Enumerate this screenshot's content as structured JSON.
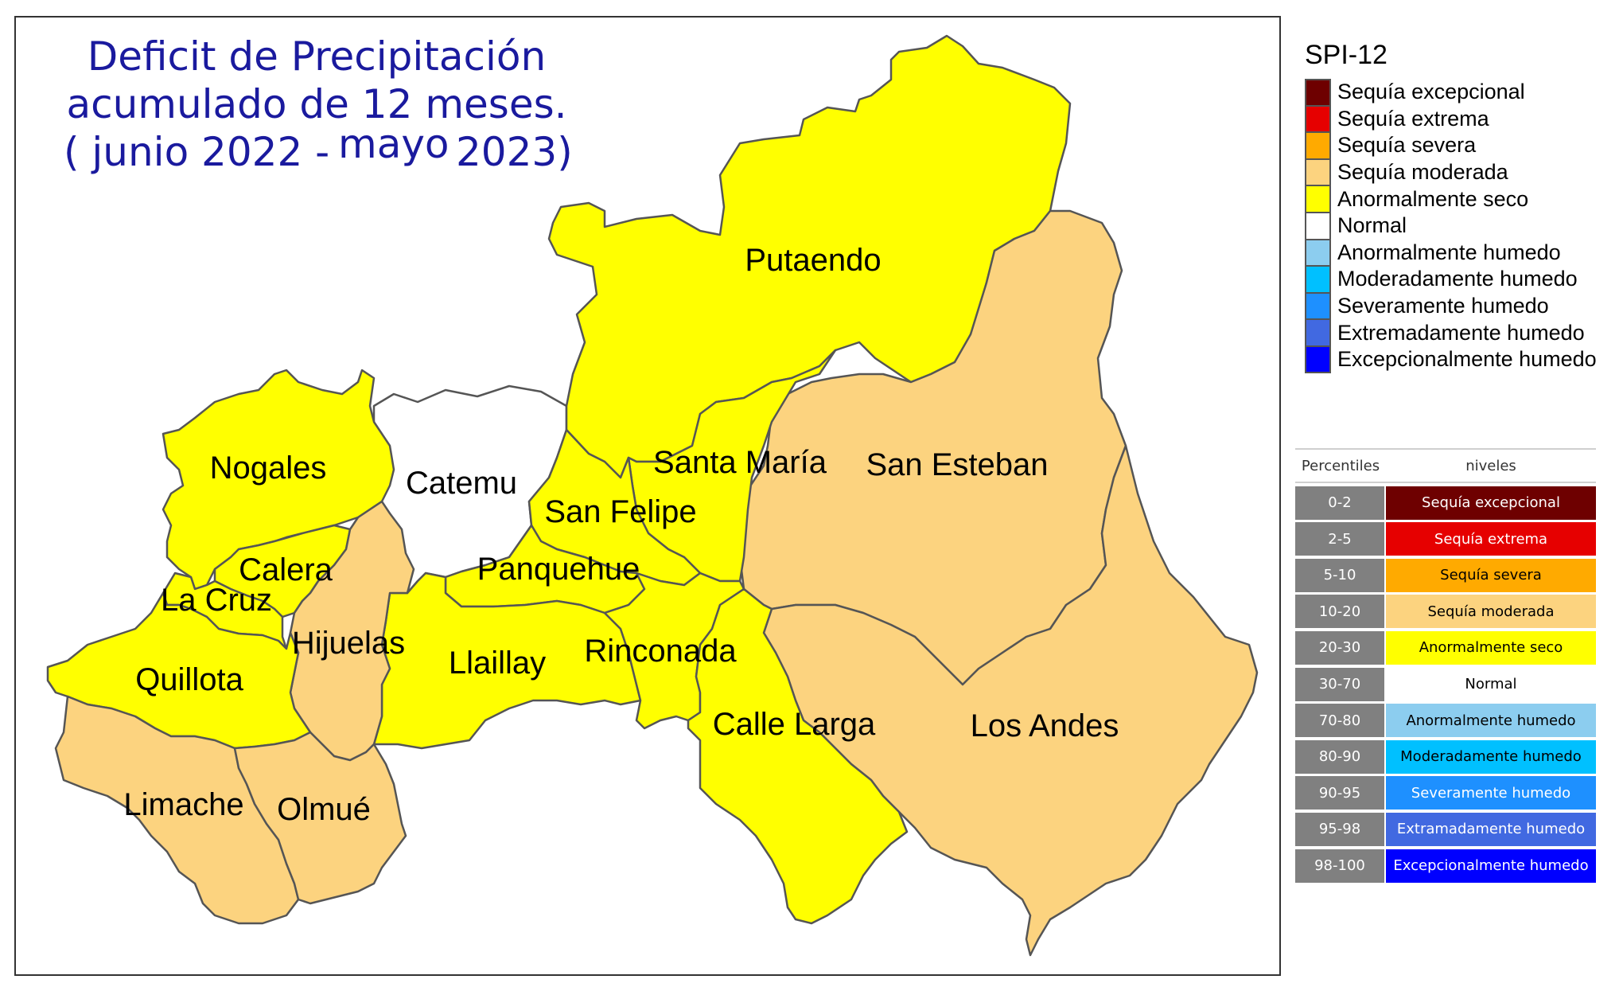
{
  "map": {
    "title_lines": [
      "Deficit de Precipitación",
      "acumulado de 12 meses.",
      "( junio 2022 -",
      "mayo",
      "2023)"
    ],
    "comunas": [
      {
        "name": "Putaendo",
        "category": "Anormalmente seco"
      },
      {
        "name": "San Esteban",
        "category": "Sequía moderada"
      },
      {
        "name": "Los Andes",
        "category": "Sequía moderada"
      },
      {
        "name": "Santa María",
        "category": "Anormalmente seco"
      },
      {
        "name": "San Felipe",
        "category": "Anormalmente seco"
      },
      {
        "name": "Catemu",
        "category": "Normal"
      },
      {
        "name": "Panquehue",
        "category": "Anormalmente seco"
      },
      {
        "name": "Llaillay",
        "category": "Anormalmente seco"
      },
      {
        "name": "Rinconada",
        "category": "Anormalmente seco"
      },
      {
        "name": "Calle Larga",
        "category": "Anormalmente seco"
      },
      {
        "name": "Nogales",
        "category": "Anormalmente seco"
      },
      {
        "name": "Calera",
        "category": "Anormalmente seco"
      },
      {
        "name": "La Cruz",
        "category": "Anormalmente seco"
      },
      {
        "name": "Hijuelas",
        "category": "Sequía moderada"
      },
      {
        "name": "Quillota",
        "category": "Anormalmente seco"
      },
      {
        "name": "Limache",
        "category": "Sequía moderada"
      },
      {
        "name": "Olmué",
        "category": "Sequía moderada"
      }
    ]
  },
  "spi_legend": {
    "title": "SPI-12",
    "items": [
      {
        "label": "Sequía excepcional",
        "color": "#6e0000"
      },
      {
        "label": "Sequía extrema",
        "color": "#e60000"
      },
      {
        "label": "Sequía severa",
        "color": "#ffaa00"
      },
      {
        "label": "Sequía moderada",
        "color": "#fcd37f"
      },
      {
        "label": "Anormalmente seco",
        "color": "#ffff00"
      },
      {
        "label": "Normal",
        "color": "#ffffff"
      },
      {
        "label": "Anormalmente humedo",
        "color": "#8ccdef"
      },
      {
        "label": "Moderadamente humedo",
        "color": "#00c0ff"
      },
      {
        "label": "Severamente humedo",
        "color": "#1e90ff"
      },
      {
        "label": "Extremadamente humedo",
        "color": "#4169e1"
      },
      {
        "label": "Excepcionalmente humedo",
        "color": "#0000ff"
      }
    ]
  },
  "percentile_table": {
    "header_percentiles": "Percentiles",
    "header_levels": "niveles",
    "rows": [
      {
        "range": "0-2",
        "level": "Sequía excepcional",
        "bg": "#6e0000",
        "fg": "#ffffff"
      },
      {
        "range": "2-5",
        "level": "Sequía extrema",
        "bg": "#e60000",
        "fg": "#ffffff"
      },
      {
        "range": "5-10",
        "level": "Sequía severa",
        "bg": "#ffaa00",
        "fg": "#000000"
      },
      {
        "range": "10-20",
        "level": "Sequía moderada",
        "bg": "#fcd37f",
        "fg": "#000000"
      },
      {
        "range": "20-30",
        "level": "Anormalmente seco",
        "bg": "#ffff00",
        "fg": "#000000"
      },
      {
        "range": "30-70",
        "level": "Normal",
        "bg": "#ffffff",
        "fg": "#000000"
      },
      {
        "range": "70-80",
        "level": "Anormalmente humedo",
        "bg": "#8ccdef",
        "fg": "#000000"
      },
      {
        "range": "80-90",
        "level": "Moderadamente humedo",
        "bg": "#00c0ff",
        "fg": "#000000"
      },
      {
        "range": "90-95",
        "level": "Severamente humedo",
        "bg": "#1e90ff",
        "fg": "#ffffff"
      },
      {
        "range": "95-98",
        "level": "Extramadamente humedo",
        "bg": "#4169e1",
        "fg": "#ffffff"
      },
      {
        "range": "98-100",
        "level": "Excepcionalmente humedo",
        "bg": "#0000ff",
        "fg": "#ffffff"
      }
    ]
  }
}
